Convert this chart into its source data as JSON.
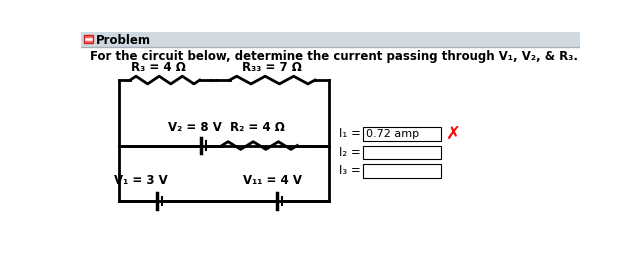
{
  "title": "Problem",
  "problem_text": "For the circuit below, determine the current passing through V₁, V₂, & R₃.",
  "background_color": "#ffffff",
  "inner_bg_color": "#ffffff",
  "circuit": {
    "R3_label": "R₃ = 4 Ω",
    "R33_label": "R₃₃ = 7 Ω",
    "V2_label": "V₂ = 8 V",
    "R2_label": "R₂ = 4 Ω",
    "V1_label": "V₁ = 3 V",
    "V11_label": "V₁₁ = 4 V"
  },
  "answers": {
    "I1_label": "I₁ =",
    "I2_label": "I₂ =",
    "I3_label": "I₃ =",
    "I1_value": "0.72 amp",
    "box_color": "#ffffff",
    "box_border": "#000000",
    "x_color": "#ff0000"
  },
  "header_bg": "#d0d8e0",
  "header_border": "#aab0ba",
  "text_color": "#000000",
  "circuit_lw": 2.0,
  "resistor_amp": 5,
  "resistor_n": 6
}
